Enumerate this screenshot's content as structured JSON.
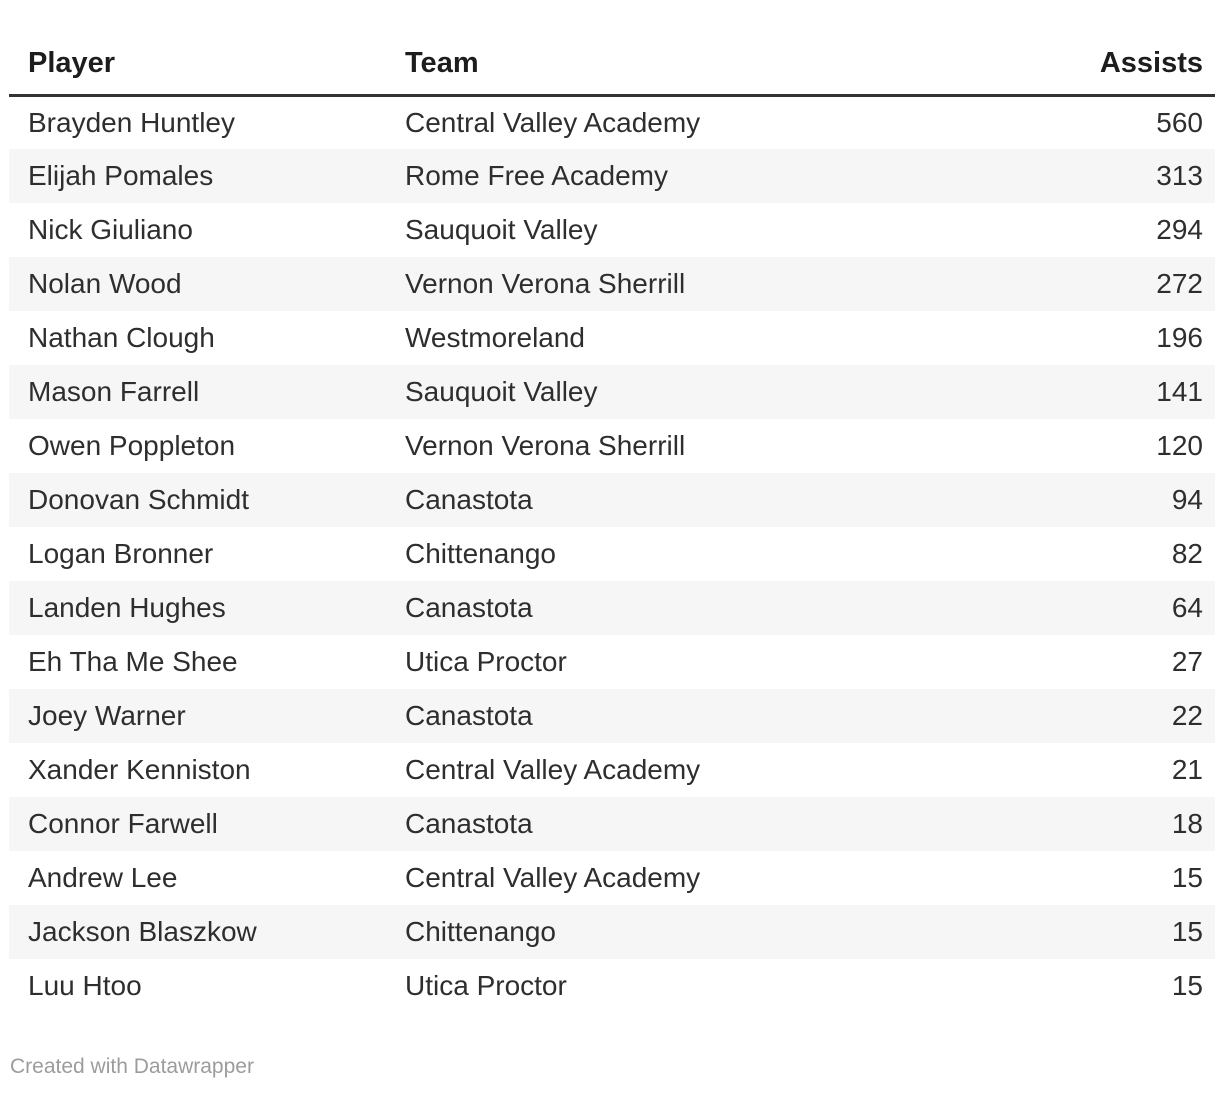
{
  "chart_data": {
    "type": "table",
    "columns": [
      "Player",
      "Team",
      "Assists"
    ],
    "rows": [
      {
        "player": "Brayden Huntley",
        "team": "Central Valley Academy",
        "assists": "560"
      },
      {
        "player": "Elijah Pomales",
        "team": "Rome Free Academy",
        "assists": "313"
      },
      {
        "player": "Nick Giuliano",
        "team": "Sauquoit Valley",
        "assists": "294"
      },
      {
        "player": "Nolan Wood",
        "team": "Vernon Verona Sherrill",
        "assists": "272"
      },
      {
        "player": "Nathan Clough",
        "team": "Westmoreland",
        "assists": "196"
      },
      {
        "player": "Mason Farrell",
        "team": "Sauquoit Valley",
        "assists": "141"
      },
      {
        "player": "Owen Poppleton",
        "team": "Vernon Verona Sherrill",
        "assists": "120"
      },
      {
        "player": "Donovan Schmidt",
        "team": "Canastota",
        "assists": "94"
      },
      {
        "player": "Logan Bronner",
        "team": "Chittenango",
        "assists": "82"
      },
      {
        "player": "Landen Hughes",
        "team": "Canastota",
        "assists": "64"
      },
      {
        "player": "Eh Tha Me Shee",
        "team": "Utica Proctor",
        "assists": "27"
      },
      {
        "player": "Joey Warner",
        "team": "Canastota",
        "assists": "22"
      },
      {
        "player": "Xander Kenniston",
        "team": "Central Valley Academy",
        "assists": "21"
      },
      {
        "player": "Connor Farwell",
        "team": "Canastota",
        "assists": "18"
      },
      {
        "player": "Andrew Lee",
        "team": "Central Valley Academy",
        "assists": "15"
      },
      {
        "player": "Jackson Blaszkow",
        "team": "Chittenango",
        "assists": "15"
      },
      {
        "player": "Luu Htoo",
        "team": "Utica Proctor",
        "assists": "15"
      }
    ],
    "layout_hints": {
      "striped_rows": true,
      "header_rule": true,
      "assists_alignment": "right"
    }
  },
  "footer": {
    "text": "Created with Datawrapper"
  },
  "colors": {
    "body_text": "#2e2e2e",
    "header_text": "#1d1d1d",
    "header_rule": "#333333",
    "row_stripe": "#f6f6f6",
    "footer_text": "#9c9c9c",
    "background": "#ffffff"
  }
}
